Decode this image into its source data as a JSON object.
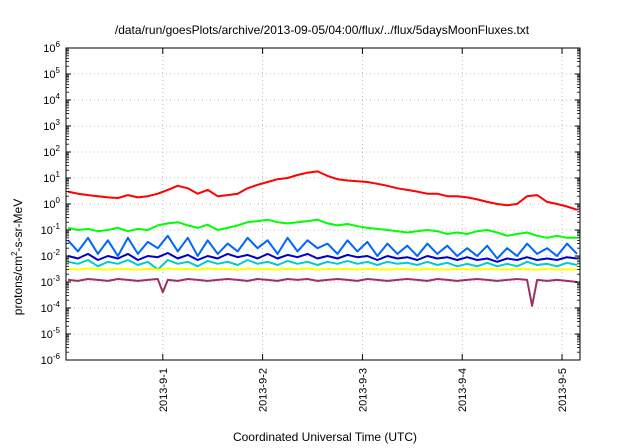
{
  "chart_data": {
    "type": "line",
    "title": "/data/run/goesPlots/archive/2013-09-05/04:00/flux/../flux/5daysMoonFluxes.txt",
    "xlabel": "Coordinated Universal Time (UTC)",
    "ylabel_base": "protons/cm",
    "ylabel_sup": "2",
    "ylabel_rest": "-s-sr-MeV",
    "y_scale": "log",
    "ylim_exp": [
      -6,
      6
    ],
    "xlim_days": [
      -0.97,
      4.18
    ],
    "grid": true,
    "x_ticks": [
      {
        "day": 0,
        "label": "2013-9-1"
      },
      {
        "day": 1,
        "label": "2013-9-2"
      },
      {
        "day": 2,
        "label": "2013-9-3"
      },
      {
        "day": 3,
        "label": "2013-9-4"
      },
      {
        "day": 4,
        "label": "2013-9-5"
      }
    ],
    "y_ticks": [
      {
        "exp": -6,
        "base": "10",
        "sup": "-6"
      },
      {
        "exp": -5,
        "base": "10",
        "sup": "-5"
      },
      {
        "exp": -4,
        "base": "10",
        "sup": "-4"
      },
      {
        "exp": -3,
        "base": "10",
        "sup": "-3"
      },
      {
        "exp": -2,
        "base": "10",
        "sup": "-2"
      },
      {
        "exp": -1,
        "base": "10",
        "sup": "-1"
      },
      {
        "exp": 0,
        "base": "10",
        "sup": "0"
      },
      {
        "exp": 1,
        "base": "10",
        "sup": "1"
      },
      {
        "exp": 2,
        "base": "10",
        "sup": "2"
      },
      {
        "exp": 3,
        "base": "10",
        "sup": "3"
      },
      {
        "exp": 4,
        "base": "10",
        "sup": "4"
      },
      {
        "exp": 5,
        "base": "10",
        "sup": "5"
      },
      {
        "exp": 6,
        "base": "10",
        "sup": "6"
      }
    ],
    "series": [
      {
        "color": "#ff0000",
        "x": [
          -0.95,
          -0.85,
          -0.75,
          -0.65,
          -0.55,
          -0.45,
          -0.35,
          -0.25,
          -0.15,
          -0.05,
          0.05,
          0.15,
          0.25,
          0.35,
          0.45,
          0.55,
          0.65,
          0.75,
          0.85,
          0.95,
          1.05,
          1.15,
          1.25,
          1.35,
          1.45,
          1.55,
          1.65,
          1.75,
          1.85,
          1.95,
          2.05,
          2.15,
          2.25,
          2.35,
          2.45,
          2.55,
          2.65,
          2.75,
          2.85,
          2.95,
          3.05,
          3.15,
          3.25,
          3.35,
          3.45,
          3.55,
          3.65,
          3.75,
          3.85,
          3.95,
          4.05,
          4.15
        ],
        "y": [
          3.0,
          2.5,
          2.2,
          2.0,
          1.8,
          1.7,
          2.2,
          1.8,
          2.0,
          2.5,
          3.5,
          5.0,
          4.0,
          2.5,
          3.5,
          2.0,
          2.2,
          2.5,
          4.0,
          5.5,
          7.0,
          9.0,
          10.0,
          13.0,
          16.0,
          18.0,
          12.0,
          9.0,
          8.0,
          7.5,
          7.0,
          6.0,
          5.0,
          4.0,
          3.5,
          3.0,
          2.5,
          2.5,
          2.0,
          2.0,
          1.8,
          1.5,
          1.2,
          1.0,
          0.9,
          1.0,
          2.0,
          2.2,
          1.2,
          1.0,
          0.8,
          0.6
        ]
      },
      {
        "color": "#00ff00",
        "x": [
          -0.95,
          -0.85,
          -0.75,
          -0.65,
          -0.55,
          -0.45,
          -0.35,
          -0.25,
          -0.15,
          -0.05,
          0.05,
          0.15,
          0.25,
          0.35,
          0.45,
          0.55,
          0.65,
          0.75,
          0.85,
          0.95,
          1.05,
          1.15,
          1.25,
          1.35,
          1.45,
          1.55,
          1.65,
          1.75,
          1.85,
          1.95,
          2.05,
          2.15,
          2.25,
          2.35,
          2.45,
          2.55,
          2.65,
          2.75,
          2.85,
          2.95,
          3.05,
          3.15,
          3.25,
          3.35,
          3.45,
          3.55,
          3.65,
          3.75,
          3.85,
          3.95,
          4.05,
          4.15
        ],
        "y": [
          0.12,
          0.1,
          0.11,
          0.09,
          0.1,
          0.12,
          0.09,
          0.11,
          0.1,
          0.15,
          0.18,
          0.2,
          0.15,
          0.12,
          0.16,
          0.1,
          0.12,
          0.15,
          0.2,
          0.22,
          0.25,
          0.2,
          0.18,
          0.2,
          0.22,
          0.25,
          0.18,
          0.15,
          0.17,
          0.14,
          0.12,
          0.11,
          0.1,
          0.09,
          0.08,
          0.09,
          0.1,
          0.09,
          0.07,
          0.08,
          0.07,
          0.09,
          0.1,
          0.08,
          0.06,
          0.07,
          0.08,
          0.06,
          0.05,
          0.06,
          0.05,
          0.05
        ]
      },
      {
        "color": "#0066ff",
        "x": [
          -0.95,
          -0.85,
          -0.75,
          -0.65,
          -0.55,
          -0.45,
          -0.35,
          -0.25,
          -0.15,
          -0.05,
          0.05,
          0.15,
          0.25,
          0.35,
          0.45,
          0.55,
          0.65,
          0.75,
          0.85,
          0.95,
          1.05,
          1.15,
          1.25,
          1.35,
          1.45,
          1.55,
          1.65,
          1.75,
          1.85,
          1.95,
          2.05,
          2.15,
          2.25,
          2.35,
          2.45,
          2.55,
          2.65,
          2.75,
          2.85,
          2.95,
          3.05,
          3.15,
          3.25,
          3.35,
          3.45,
          3.55,
          3.65,
          3.75,
          3.85,
          3.95,
          4.05,
          4.15
        ],
        "y": [
          0.04,
          0.015,
          0.05,
          0.012,
          0.04,
          0.01,
          0.05,
          0.012,
          0.035,
          0.02,
          0.06,
          0.015,
          0.05,
          0.01,
          0.04,
          0.012,
          0.03,
          0.015,
          0.05,
          0.02,
          0.04,
          0.012,
          0.05,
          0.015,
          0.04,
          0.02,
          0.03,
          0.012,
          0.04,
          0.015,
          0.035,
          0.01,
          0.03,
          0.012,
          0.025,
          0.01,
          0.03,
          0.012,
          0.025,
          0.01,
          0.02,
          0.01,
          0.025,
          0.008,
          0.02,
          0.01,
          0.03,
          0.012,
          0.02,
          0.01,
          0.03,
          0.012
        ]
      },
      {
        "color": "#0000cc",
        "x": [
          -0.95,
          -0.85,
          -0.75,
          -0.65,
          -0.55,
          -0.45,
          -0.35,
          -0.25,
          -0.15,
          -0.05,
          0.05,
          0.15,
          0.25,
          0.35,
          0.45,
          0.55,
          0.65,
          0.75,
          0.85,
          0.95,
          1.05,
          1.15,
          1.25,
          1.35,
          1.45,
          1.55,
          1.65,
          1.75,
          1.85,
          1.95,
          2.05,
          2.15,
          2.25,
          2.35,
          2.45,
          2.55,
          2.65,
          2.75,
          2.85,
          2.95,
          3.05,
          3.15,
          3.25,
          3.35,
          3.45,
          3.55,
          3.65,
          3.75,
          3.85,
          3.95,
          4.05,
          4.15
        ],
        "y": [
          0.01,
          0.008,
          0.012,
          0.007,
          0.01,
          0.008,
          0.012,
          0.007,
          0.01,
          0.009,
          0.013,
          0.008,
          0.011,
          0.007,
          0.01,
          0.008,
          0.012,
          0.009,
          0.011,
          0.008,
          0.012,
          0.008,
          0.011,
          0.009,
          0.012,
          0.008,
          0.01,
          0.008,
          0.011,
          0.009,
          0.01,
          0.007,
          0.01,
          0.008,
          0.009,
          0.007,
          0.01,
          0.008,
          0.009,
          0.007,
          0.009,
          0.007,
          0.008,
          0.006,
          0.008,
          0.007,
          0.009,
          0.007,
          0.008,
          0.007,
          0.009,
          0.008
        ]
      },
      {
        "color": "#00cccc",
        "x": [
          -0.95,
          -0.85,
          -0.75,
          -0.65,
          -0.55,
          -0.45,
          -0.35,
          -0.25,
          -0.15,
          -0.05,
          0.05,
          0.15,
          0.25,
          0.35,
          0.45,
          0.55,
          0.65,
          0.75,
          0.85,
          0.95,
          1.05,
          1.15,
          1.25,
          1.35,
          1.45,
          1.55,
          1.65,
          1.75,
          1.85,
          1.95,
          2.05,
          2.15,
          2.25,
          2.35,
          2.45,
          2.55,
          2.65,
          2.75,
          2.85,
          2.95,
          3.05,
          3.15,
          3.25,
          3.35,
          3.45,
          3.55,
          3.65,
          3.75,
          3.85,
          3.95,
          4.05,
          4.15
        ],
        "y": [
          0.006,
          0.005,
          0.007,
          0.004,
          0.006,
          0.005,
          0.007,
          0.0045,
          0.006,
          0.003,
          0.007,
          0.005,
          0.006,
          0.004,
          0.0065,
          0.005,
          0.006,
          0.0045,
          0.007,
          0.005,
          0.006,
          0.0045,
          0.0065,
          0.005,
          0.006,
          0.0045,
          0.006,
          0.005,
          0.0065,
          0.005,
          0.006,
          0.0045,
          0.006,
          0.005,
          0.0055,
          0.0045,
          0.006,
          0.0045,
          0.0055,
          0.004,
          0.005,
          0.004,
          0.0055,
          0.004,
          0.005,
          0.004,
          0.006,
          0.0045,
          0.005,
          0.004,
          0.0055,
          0.0045
        ]
      },
      {
        "color": "#ffff00",
        "x": [
          -0.95,
          -0.85,
          -0.75,
          -0.65,
          -0.55,
          -0.45,
          -0.35,
          -0.25,
          -0.15,
          -0.05,
          0.05,
          0.15,
          0.25,
          0.35,
          0.45,
          0.55,
          0.65,
          0.75,
          0.85,
          0.95,
          1.05,
          1.15,
          1.25,
          1.35,
          1.45,
          1.55,
          1.65,
          1.75,
          1.85,
          1.95,
          2.05,
          2.15,
          2.25,
          2.35,
          2.45,
          2.55,
          2.65,
          2.75,
          2.85,
          2.95,
          3.05,
          3.15,
          3.25,
          3.35,
          3.45,
          3.55,
          3.65,
          3.75,
          3.85,
          3.95,
          4.05,
          4.15
        ],
        "y": [
          0.0032,
          0.003,
          0.0033,
          0.0031,
          0.003,
          0.0032,
          0.0031,
          0.003,
          0.0032,
          0.003,
          0.0033,
          0.0031,
          0.0032,
          0.003,
          0.0033,
          0.0031,
          0.0032,
          0.003,
          0.0033,
          0.0031,
          0.0032,
          0.003,
          0.0032,
          0.0031,
          0.0033,
          0.003,
          0.0032,
          0.0031,
          0.0032,
          0.003,
          0.0032,
          0.0031,
          0.003,
          0.0032,
          0.0031,
          0.003,
          0.0032,
          0.0031,
          0.003,
          0.0032,
          0.0031,
          0.003,
          0.0032,
          0.0031,
          0.003,
          0.0032,
          0.0031,
          0.003,
          0.0032,
          0.003,
          0.0031,
          0.003
        ]
      },
      {
        "color": "#993366",
        "x": [
          -0.95,
          -0.85,
          -0.75,
          -0.65,
          -0.55,
          -0.45,
          -0.35,
          -0.25,
          -0.15,
          -0.05,
          0.0,
          0.05,
          0.15,
          0.25,
          0.35,
          0.45,
          0.55,
          0.65,
          0.75,
          0.85,
          0.95,
          1.05,
          1.15,
          1.25,
          1.35,
          1.45,
          1.55,
          1.65,
          1.75,
          1.85,
          1.95,
          2.05,
          2.15,
          2.25,
          2.35,
          2.45,
          2.55,
          2.65,
          2.75,
          2.85,
          2.95,
          3.05,
          3.15,
          3.25,
          3.35,
          3.45,
          3.55,
          3.65,
          3.7,
          3.75,
          3.85,
          3.95,
          4.05,
          4.15
        ],
        "y": [
          0.0012,
          0.0011,
          0.0013,
          0.0012,
          0.0011,
          0.0013,
          0.0012,
          0.0011,
          0.0012,
          0.0013,
          0.0004,
          0.0012,
          0.0011,
          0.0013,
          0.0012,
          0.0011,
          0.0012,
          0.0013,
          0.0012,
          0.0011,
          0.0013,
          0.0012,
          0.0011,
          0.0013,
          0.0012,
          0.0013,
          0.0011,
          0.0012,
          0.0013,
          0.0012,
          0.0011,
          0.0013,
          0.0012,
          0.0011,
          0.0012,
          0.0013,
          0.0012,
          0.0011,
          0.0013,
          0.0012,
          0.0011,
          0.0012,
          0.0013,
          0.0012,
          0.0011,
          0.0012,
          0.0013,
          0.0012,
          0.00012,
          0.0012,
          0.0011,
          0.0012,
          0.0011,
          0.001
        ]
      }
    ]
  }
}
